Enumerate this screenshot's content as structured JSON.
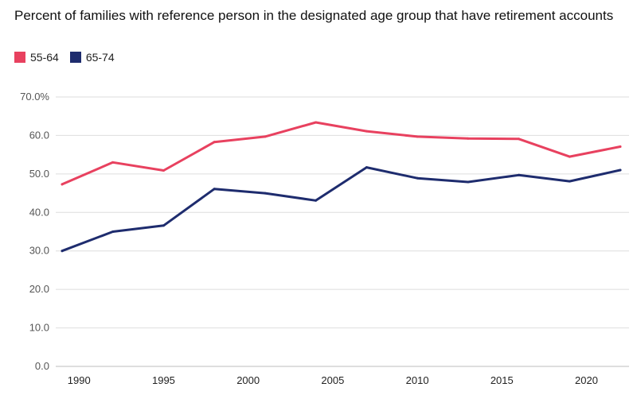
{
  "chart_data": {
    "type": "line",
    "title": "Percent of families with reference person in the designated age group that have retirement accounts",
    "xlabel": "",
    "ylabel": "",
    "x": [
      1989,
      1992,
      1995,
      1998,
      2001,
      2004,
      2007,
      2010,
      2013,
      2016,
      2019,
      2022
    ],
    "series": [
      {
        "name": "55-64",
        "color": "#e8415f",
        "values": [
          47.3,
          53.0,
          50.9,
          58.3,
          59.7,
          63.4,
          61.1,
          59.7,
          59.2,
          59.1,
          54.5,
          57.1
        ]
      },
      {
        "name": "65-74",
        "color": "#1e2c6e",
        "values": [
          30.0,
          35.0,
          36.6,
          46.1,
          45.0,
          43.1,
          51.7,
          48.9,
          47.9,
          49.7,
          48.1,
          51.0
        ]
      }
    ],
    "ylim": [
      0,
      70
    ],
    "yticks": [
      0,
      10,
      20,
      30,
      40,
      50,
      60,
      70
    ],
    "ytick_labels": [
      "0.0",
      "10.0",
      "20.0",
      "30.0",
      "40.0",
      "50.0",
      "60.0",
      "70.0%"
    ],
    "xticks": [
      1990,
      1995,
      2000,
      2005,
      2010,
      2015,
      2020
    ],
    "xtick_labels": [
      "1990",
      "1995",
      "2000",
      "2005",
      "2010",
      "2015",
      "2020"
    ],
    "grid": true,
    "legend_position": "top-left"
  }
}
